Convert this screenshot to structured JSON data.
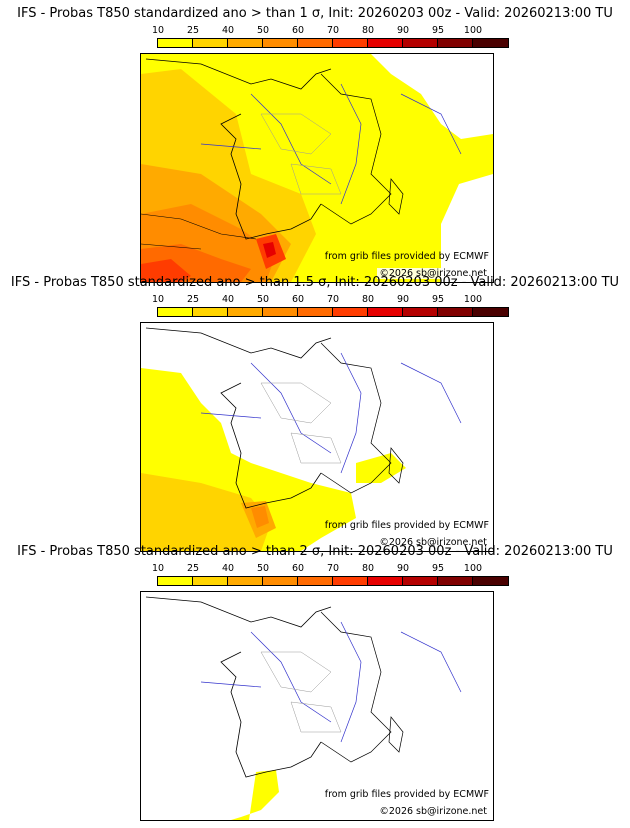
{
  "colorbar": {
    "ticks": [
      "10",
      "25",
      "40",
      "50",
      "60",
      "70",
      "80",
      "90",
      "95",
      "100"
    ],
    "colors": [
      "#ffff00",
      "#ffd400",
      "#ffaa00",
      "#ff8c00",
      "#ff6a00",
      "#ff3c00",
      "#e60000",
      "#b40000",
      "#800000",
      "#4a0000"
    ]
  },
  "credits": {
    "source": "from grib files provided by ECMWF",
    "copyright": "©2026 sb@irizone.net"
  },
  "panels": [
    {
      "title": "IFS - Probas T850  standardized ano > than 1 σ, Init: 20260203 00z - Valid: 20260213:00 TU"
    },
    {
      "title": "IFS - Probas T850  standardized ano > than 1.5 σ, Init: 20260203 00z - Valid: 20260213:00 TU"
    },
    {
      "title": "IFS - Probas T850  standardized ano > than 2 σ, Init: 20260203 00z - Valid: 20260213:00 TU"
    }
  ]
}
